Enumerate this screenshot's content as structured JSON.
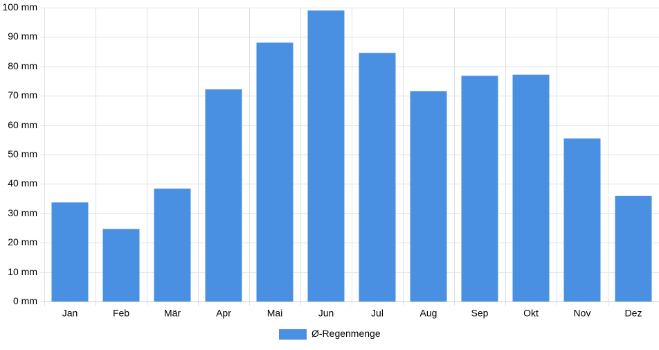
{
  "chart_data": {
    "type": "bar",
    "categories": [
      "Jan",
      "Feb",
      "Mär",
      "Apr",
      "Mai",
      "Jun",
      "Jul",
      "Aug",
      "Sep",
      "Okt",
      "Nov",
      "Dez"
    ],
    "series": [
      {
        "name": "Ø-Regenmenge",
        "values": [
          33.7,
          24.7,
          38.4,
          72.2,
          88.1,
          99.0,
          84.6,
          71.6,
          76.8,
          77.2,
          55.5,
          35.9
        ],
        "color": "#4a90e2"
      }
    ],
    "title": "",
    "xlabel": "",
    "ylabel": "",
    "ylim": [
      0,
      100
    ],
    "y_ticks": [
      0,
      10,
      20,
      30,
      40,
      50,
      60,
      70,
      80,
      90,
      100
    ],
    "y_tick_suffix": " mm",
    "grid": true,
    "legend": "bottom-center",
    "grid_color": "#e0e0e0"
  }
}
